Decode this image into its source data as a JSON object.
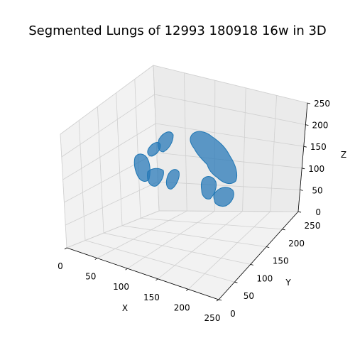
{
  "chart_data": {
    "type": "scatter",
    "projection": "3d",
    "title": "Segmented Lungs of 12993 180918 16w in 3D",
    "xlabel": "X",
    "ylabel": "Y",
    "zlabel": "Z",
    "xlim": [
      0,
      250
    ],
    "ylim": [
      0,
      250
    ],
    "zlim": [
      0,
      250
    ],
    "x_ticks": [
      0,
      50,
      100,
      150,
      200,
      250
    ],
    "y_ticks": [
      0,
      50,
      100,
      150,
      200,
      250
    ],
    "z_ticks": [
      0,
      50,
      100,
      150,
      200,
      250
    ],
    "grid": true,
    "series_color": "#1f77b4"
  }
}
